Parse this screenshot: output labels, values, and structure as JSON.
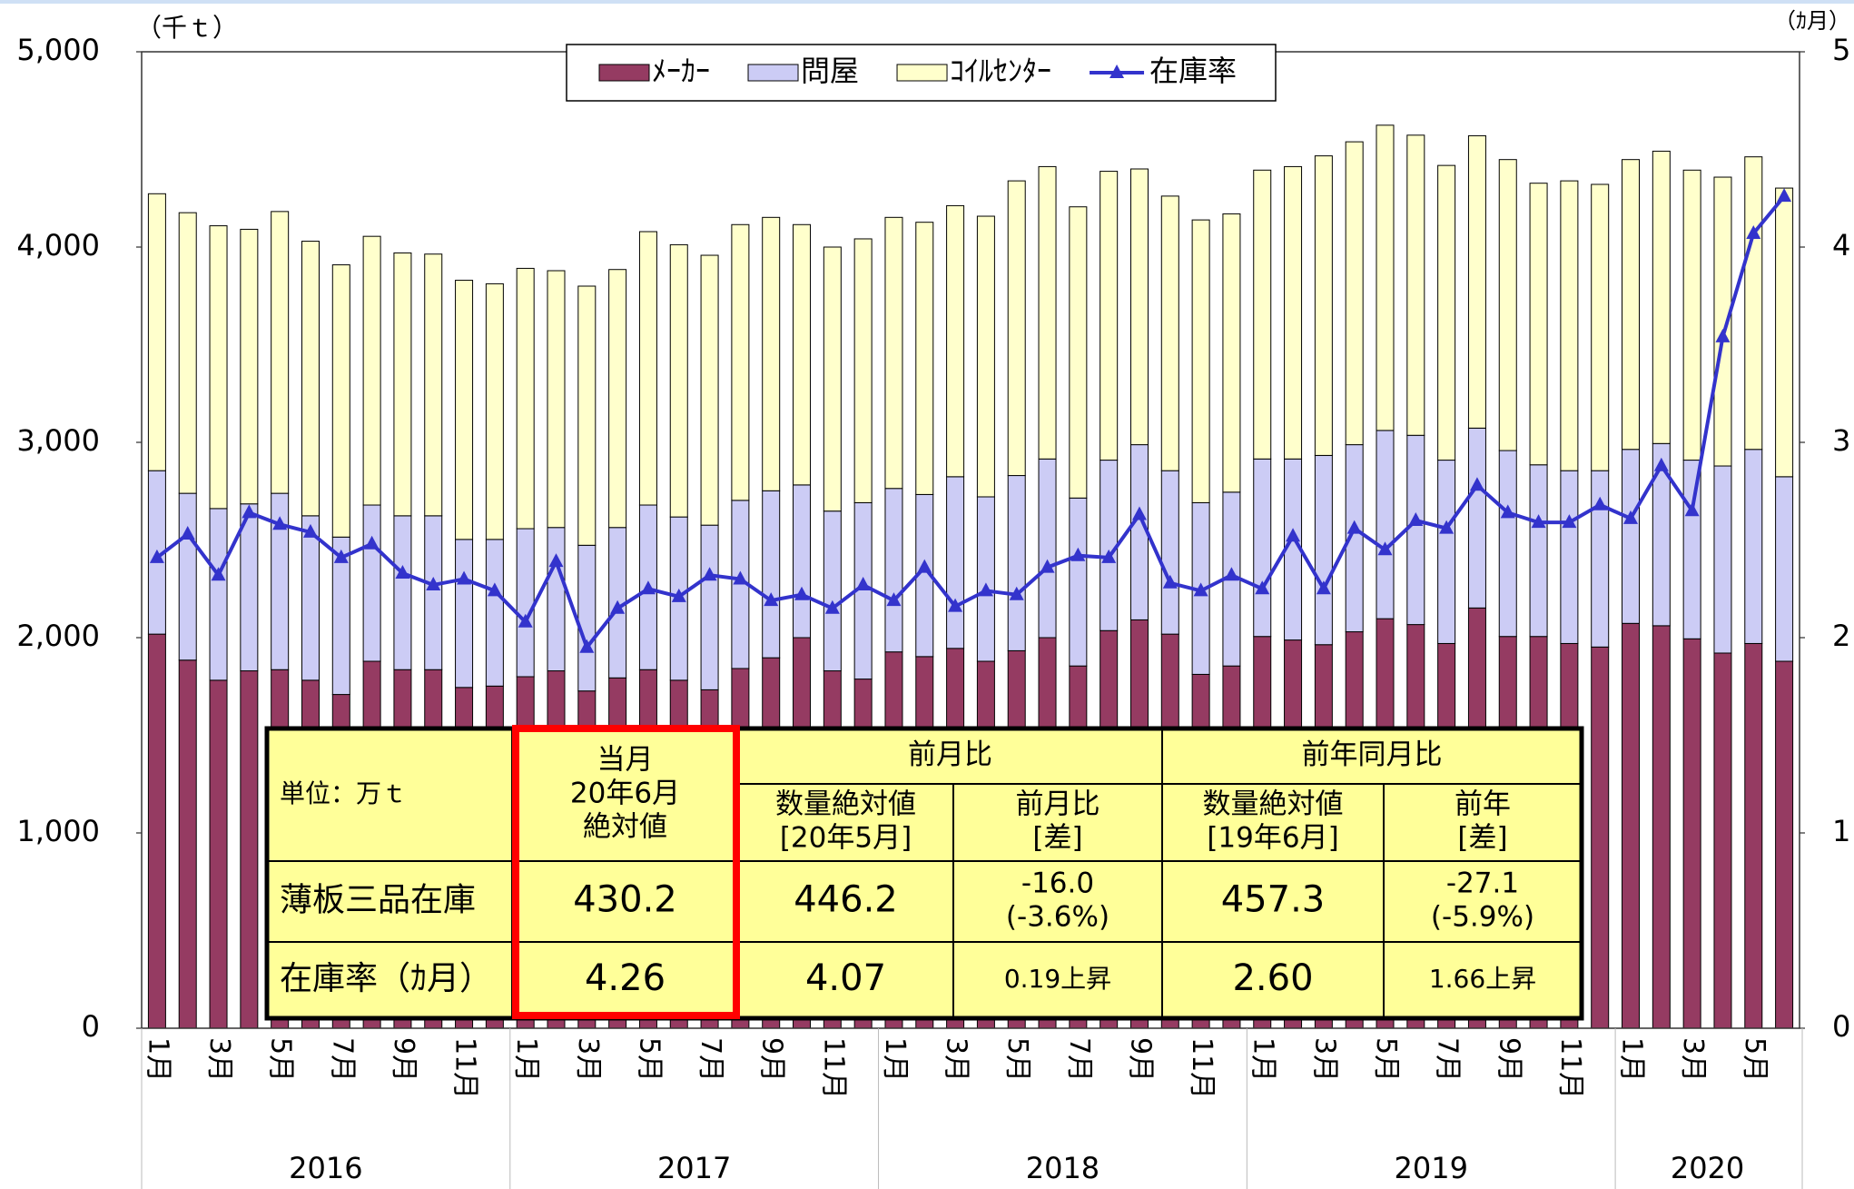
{
  "chart_data": {
    "type": "bar",
    "stacked": true,
    "y_unit": "（千ｔ）",
    "y2_unit": "（ｶ月）",
    "categories": [
      "1月",
      null,
      "3月",
      null,
      "5月",
      null,
      "7月",
      null,
      "9月",
      null,
      "11月",
      null,
      "1月",
      null,
      "3月",
      null,
      "5月",
      null,
      "7月",
      null,
      "9月",
      null,
      "11月",
      null,
      "1月",
      null,
      "3月",
      null,
      "5月",
      null,
      "7月",
      null,
      "9月",
      null,
      "11月",
      null,
      "1月",
      null,
      "3月",
      null,
      "5月",
      null,
      "7月",
      null,
      "9月",
      null,
      "11月",
      null,
      "1月",
      null,
      "3月",
      null,
      "5月",
      null
    ],
    "years": [
      "2016",
      "2017",
      "2018",
      "2019",
      "2020"
    ],
    "ylim": [
      0,
      5000
    ],
    "yticks": [
      0,
      {
        "value": 1000,
        "label": "1,000"
      },
      {
        "value": 2000,
        "label": "2,000"
      },
      {
        "value": 3000,
        "label": "3,000"
      },
      {
        "value": 4000,
        "label": "4,000"
      },
      {
        "value": 5000,
        "label": "5,000"
      }
    ],
    "y2lim": [
      0,
      5
    ],
    "y2ticks": [
      0,
      1,
      2,
      3,
      4,
      5
    ],
    "grid": false,
    "legend": "top",
    "series": [
      {
        "name": "ﾒｰｶｰ",
        "color": "#953b62",
        "values": [
          2018,
          1885,
          1782,
          1830,
          1836,
          1782,
          1709,
          1879,
          1836,
          1836,
          1745,
          1752,
          1800,
          1830,
          1727,
          1794,
          1836,
          1782,
          1733,
          1842,
          1897,
          2000,
          1830,
          1788,
          1927,
          1903,
          1945,
          1879,
          1933,
          2000,
          1855,
          2036,
          2091,
          2018,
          1812,
          1855,
          2006,
          1988,
          1964,
          2030,
          2097,
          2067,
          1970,
          2152,
          2006,
          2006,
          1970,
          1952,
          2073,
          2061,
          1994,
          1921,
          1970,
          1879
        ]
      },
      {
        "name": "問屋",
        "color": "#ccccf5",
        "values": [
          837,
          854,
          879,
          855,
          903,
          842,
          806,
          800,
          788,
          788,
          758,
          751,
          758,
          734,
          746,
          770,
          843,
          836,
          843,
          861,
          855,
          782,
          818,
          903,
          837,
          830,
          879,
          842,
          897,
          915,
          860,
          873,
          897,
          837,
          879,
          890,
          909,
          927,
          969,
          958,
          964,
          969,
          939,
          921,
          952,
          879,
          885,
          903,
          891,
          933,
          915,
          958,
          994,
          945
        ]
      },
      {
        "name": "ｺｲﾙｾﾝﾀｰ",
        "color": "#ffffcc",
        "values": [
          1418,
          1437,
          1448,
          1406,
          1443,
          1406,
          1394,
          1376,
          1346,
          1340,
          1327,
          1309,
          1333,
          1315,
          1327,
          1321,
          1400,
          1394,
          1382,
          1412,
          1400,
          1333,
          1352,
          1351,
          1388,
          1394,
          1388,
          1437,
          1509,
          1497,
          1491,
          1479,
          1412,
          1406,
          1448,
          1425,
          1479,
          1497,
          1534,
          1551,
          1563,
          1537,
          1509,
          1497,
          1490,
          1442,
          1484,
          1466,
          1484,
          1497,
          1485,
          1479,
          1498,
          1478
        ]
      },
      {
        "name": "在庫率",
        "type": "line",
        "axis": "y2",
        "marker": "triangle",
        "color": "#3333cc",
        "values": [
          2.41,
          2.53,
          2.32,
          2.64,
          2.58,
          2.54,
          2.41,
          2.48,
          2.33,
          2.27,
          2.3,
          2.24,
          2.08,
          2.39,
          1.95,
          2.15,
          2.25,
          2.21,
          2.32,
          2.3,
          2.19,
          2.22,
          2.15,
          2.27,
          2.19,
          2.36,
          2.16,
          2.24,
          2.22,
          2.36,
          2.42,
          2.41,
          2.63,
          2.28,
          2.24,
          2.32,
          2.25,
          2.52,
          2.25,
          2.56,
          2.45,
          2.6,
          2.56,
          2.78,
          2.64,
          2.59,
          2.59,
          2.68,
          2.61,
          2.88,
          2.65,
          3.54,
          4.07,
          4.26
        ]
      }
    ]
  },
  "table": {
    "unit": "単位：万ｔ",
    "current": [
      "当月",
      "20年6月",
      "絶対値"
    ],
    "groups": [
      "前月比",
      "前年同月比"
    ],
    "subheads": [
      [
        "数量絶対値",
        "[20年5月]"
      ],
      [
        "前月比",
        "[差]"
      ],
      [
        "数量絶対値",
        "[19年6月]"
      ],
      [
        "前年",
        "[差]"
      ]
    ],
    "rows": [
      [
        "薄板三品在庫",
        "430.2",
        "446.2",
        [
          "-16.0",
          "(-3.6%)"
        ],
        "457.3",
        [
          "-27.1",
          "(-5.9%)"
        ]
      ],
      [
        "在庫率（ｶ月）",
        "4.26",
        "4.07",
        "0.19上昇",
        "2.60",
        "1.66上昇"
      ]
    ]
  }
}
